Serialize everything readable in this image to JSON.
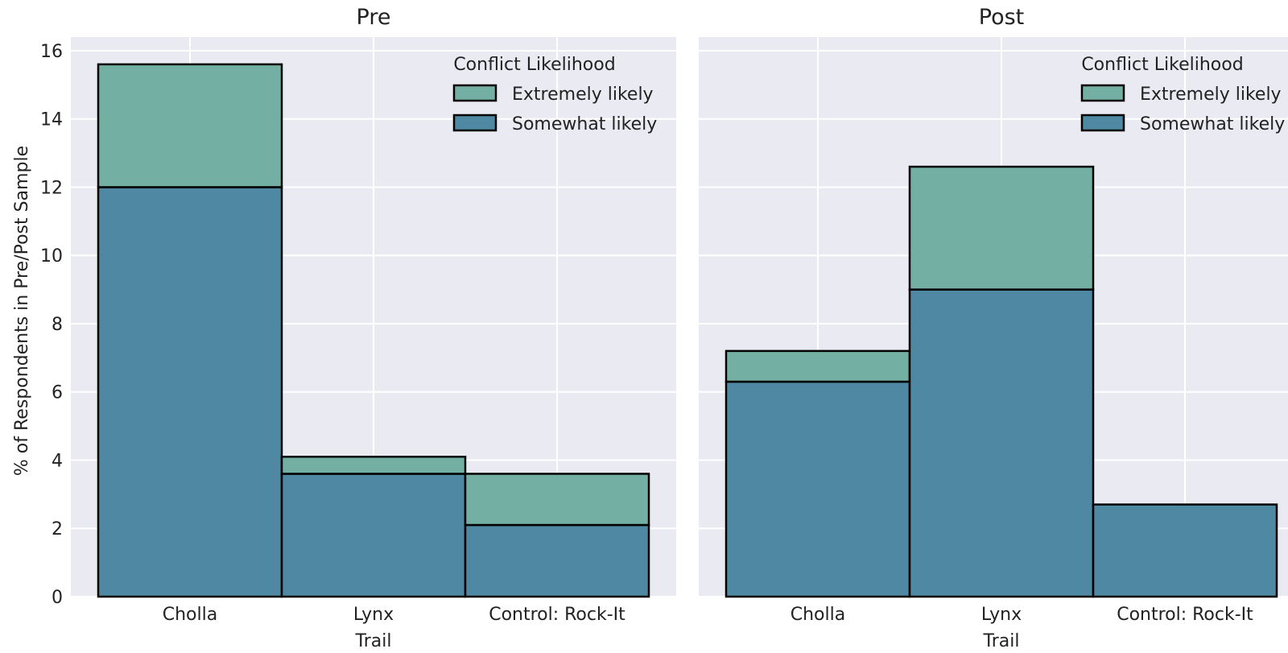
{
  "chart_data": [
    {
      "type": "bar",
      "stacked": true,
      "title": "Pre",
      "xlabel": "Trail",
      "ylabel": "% of Respondents in Pre/Post Sample",
      "categories": [
        "Cholla",
        "Lynx",
        "Control: Rock-It"
      ],
      "ylim": [
        0,
        16.4
      ],
      "yticks": [
        "0",
        "2",
        "4",
        "6",
        "8",
        "10",
        "12",
        "14",
        "16"
      ],
      "grid": true,
      "legend": {
        "title": "Conflict Likelihood",
        "placement": "top-right"
      },
      "series": [
        {
          "name": "Somewhat likely",
          "color": "#4f88a3",
          "values": [
            12.0,
            3.6,
            2.1
          ]
        },
        {
          "name": "Extremely likely",
          "color": "#74afa4",
          "values": [
            3.6,
            0.5,
            1.5
          ]
        }
      ]
    },
    {
      "type": "bar",
      "stacked": true,
      "title": "Post",
      "xlabel": "Trail",
      "ylabel": "",
      "categories": [
        "Cholla",
        "Lynx",
        "Control: Rock-It"
      ],
      "ylim": [
        0,
        16.4
      ],
      "grid": true,
      "legend": {
        "title": "Conflict Likelihood",
        "placement": "top-right"
      },
      "series": [
        {
          "name": "Somewhat likely",
          "color": "#4f88a3",
          "values": [
            6.3,
            9.0,
            2.7
          ]
        },
        {
          "name": "Extremely likely",
          "color": "#74afa4",
          "values": [
            0.9,
            3.6,
            0.0
          ]
        }
      ]
    }
  ],
  "colors": {
    "plot_bg": "#eaeaf2",
    "grid": "#ffffff",
    "edge": "#000000"
  }
}
